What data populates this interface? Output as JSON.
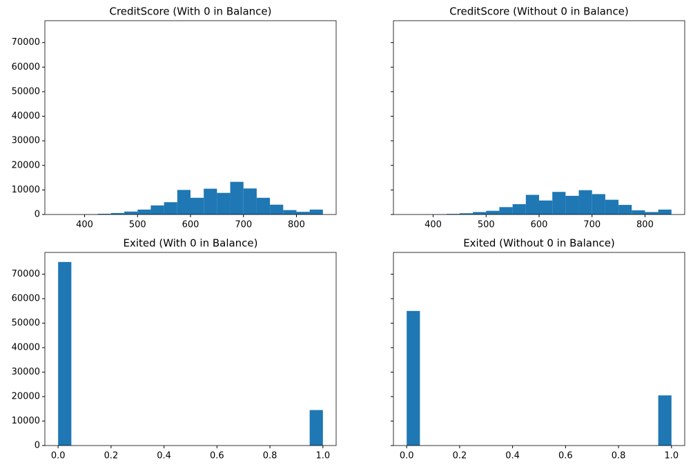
{
  "chart_data": [
    {
      "type": "histogram",
      "title": "CreditScore (With 0 in Balance)",
      "color": "#1f77b4",
      "bins": [
        350,
        375,
        400,
        425,
        450,
        475,
        500,
        525,
        550,
        575,
        600,
        625,
        650,
        675,
        700,
        725,
        750,
        775,
        800,
        825,
        850
      ],
      "values": [
        0,
        0,
        100,
        300,
        600,
        1200,
        2000,
        3700,
        5000,
        10000,
        6800,
        10500,
        8800,
        13300,
        10600,
        6800,
        4000,
        1800,
        1100,
        2000
      ],
      "xlim": [
        325,
        875
      ],
      "xticks": [
        400,
        500,
        600,
        700,
        800
      ],
      "ylim": [
        0,
        78900
      ],
      "yticks": [
        0,
        10000,
        20000,
        30000,
        40000,
        50000,
        60000,
        70000
      ],
      "show_ytick_labels": true
    },
    {
      "type": "histogram",
      "title": "CreditScore (Without 0 in Balance)",
      "color": "#1f77b4",
      "bins": [
        350,
        375,
        400,
        425,
        450,
        475,
        500,
        525,
        550,
        575,
        600,
        625,
        650,
        675,
        700,
        725,
        750,
        775,
        800,
        825,
        850
      ],
      "values": [
        0,
        0,
        80,
        250,
        500,
        1000,
        1500,
        3000,
        4200,
        8000,
        5700,
        9200,
        7600,
        9900,
        8300,
        6000,
        3900,
        1700,
        1000,
        2000
      ],
      "xlim": [
        325,
        875
      ],
      "xticks": [
        400,
        500,
        600,
        700,
        800
      ],
      "ylim": [
        0,
        78900
      ],
      "yticks": [
        0,
        10000,
        20000,
        30000,
        40000,
        50000,
        60000,
        70000
      ],
      "show_ytick_labels": false
    },
    {
      "type": "histogram",
      "title": "Exited (With 0 in Balance)",
      "color": "#1f77b4",
      "bins": [
        0,
        0.05,
        0.1,
        0.15,
        0.2,
        0.25,
        0.3,
        0.35,
        0.4,
        0.45,
        0.5,
        0.55,
        0.6,
        0.65,
        0.7,
        0.75,
        0.8,
        0.85,
        0.9,
        0.95,
        1
      ],
      "values": [
        75000,
        0,
        0,
        0,
        0,
        0,
        0,
        0,
        0,
        0,
        0,
        0,
        0,
        0,
        0,
        0,
        0,
        0,
        0,
        14500
      ],
      "xlim": [
        -0.05,
        1.05
      ],
      "xticks": [
        {
          "value": 0,
          "label": "0.0"
        },
        {
          "value": 0.2,
          "label": "0.2"
        },
        {
          "value": 0.4,
          "label": "0.4"
        },
        {
          "value": 0.6,
          "label": "0.6"
        },
        {
          "value": 0.8,
          "label": "0.8"
        },
        {
          "value": 1,
          "label": "1.0"
        }
      ],
      "ylim": [
        0,
        78900
      ],
      "yticks": [
        0,
        10000,
        20000,
        30000,
        40000,
        50000,
        60000,
        70000
      ],
      "show_ytick_labels": true
    },
    {
      "type": "histogram",
      "title": "Exited (Without 0 in Balance)",
      "color": "#1f77b4",
      "bins": [
        0,
        0.05,
        0.1,
        0.15,
        0.2,
        0.25,
        0.3,
        0.35,
        0.4,
        0.45,
        0.5,
        0.55,
        0.6,
        0.65,
        0.7,
        0.75,
        0.8,
        0.85,
        0.9,
        0.95,
        1
      ],
      "values": [
        55000,
        0,
        0,
        0,
        0,
        0,
        0,
        0,
        0,
        0,
        0,
        0,
        0,
        0,
        0,
        0,
        0,
        0,
        0,
        20500
      ],
      "xlim": [
        -0.05,
        1.05
      ],
      "xticks": [
        {
          "value": 0,
          "label": "0.0"
        },
        {
          "value": 0.2,
          "label": "0.2"
        },
        {
          "value": 0.4,
          "label": "0.4"
        },
        {
          "value": 0.6,
          "label": "0.6"
        },
        {
          "value": 0.8,
          "label": "0.8"
        },
        {
          "value": 1,
          "label": "1.0"
        }
      ],
      "ylim": [
        0,
        78900
      ],
      "yticks": [
        0,
        10000,
        20000,
        30000,
        40000,
        50000,
        60000,
        70000
      ],
      "show_ytick_labels": false
    }
  ]
}
